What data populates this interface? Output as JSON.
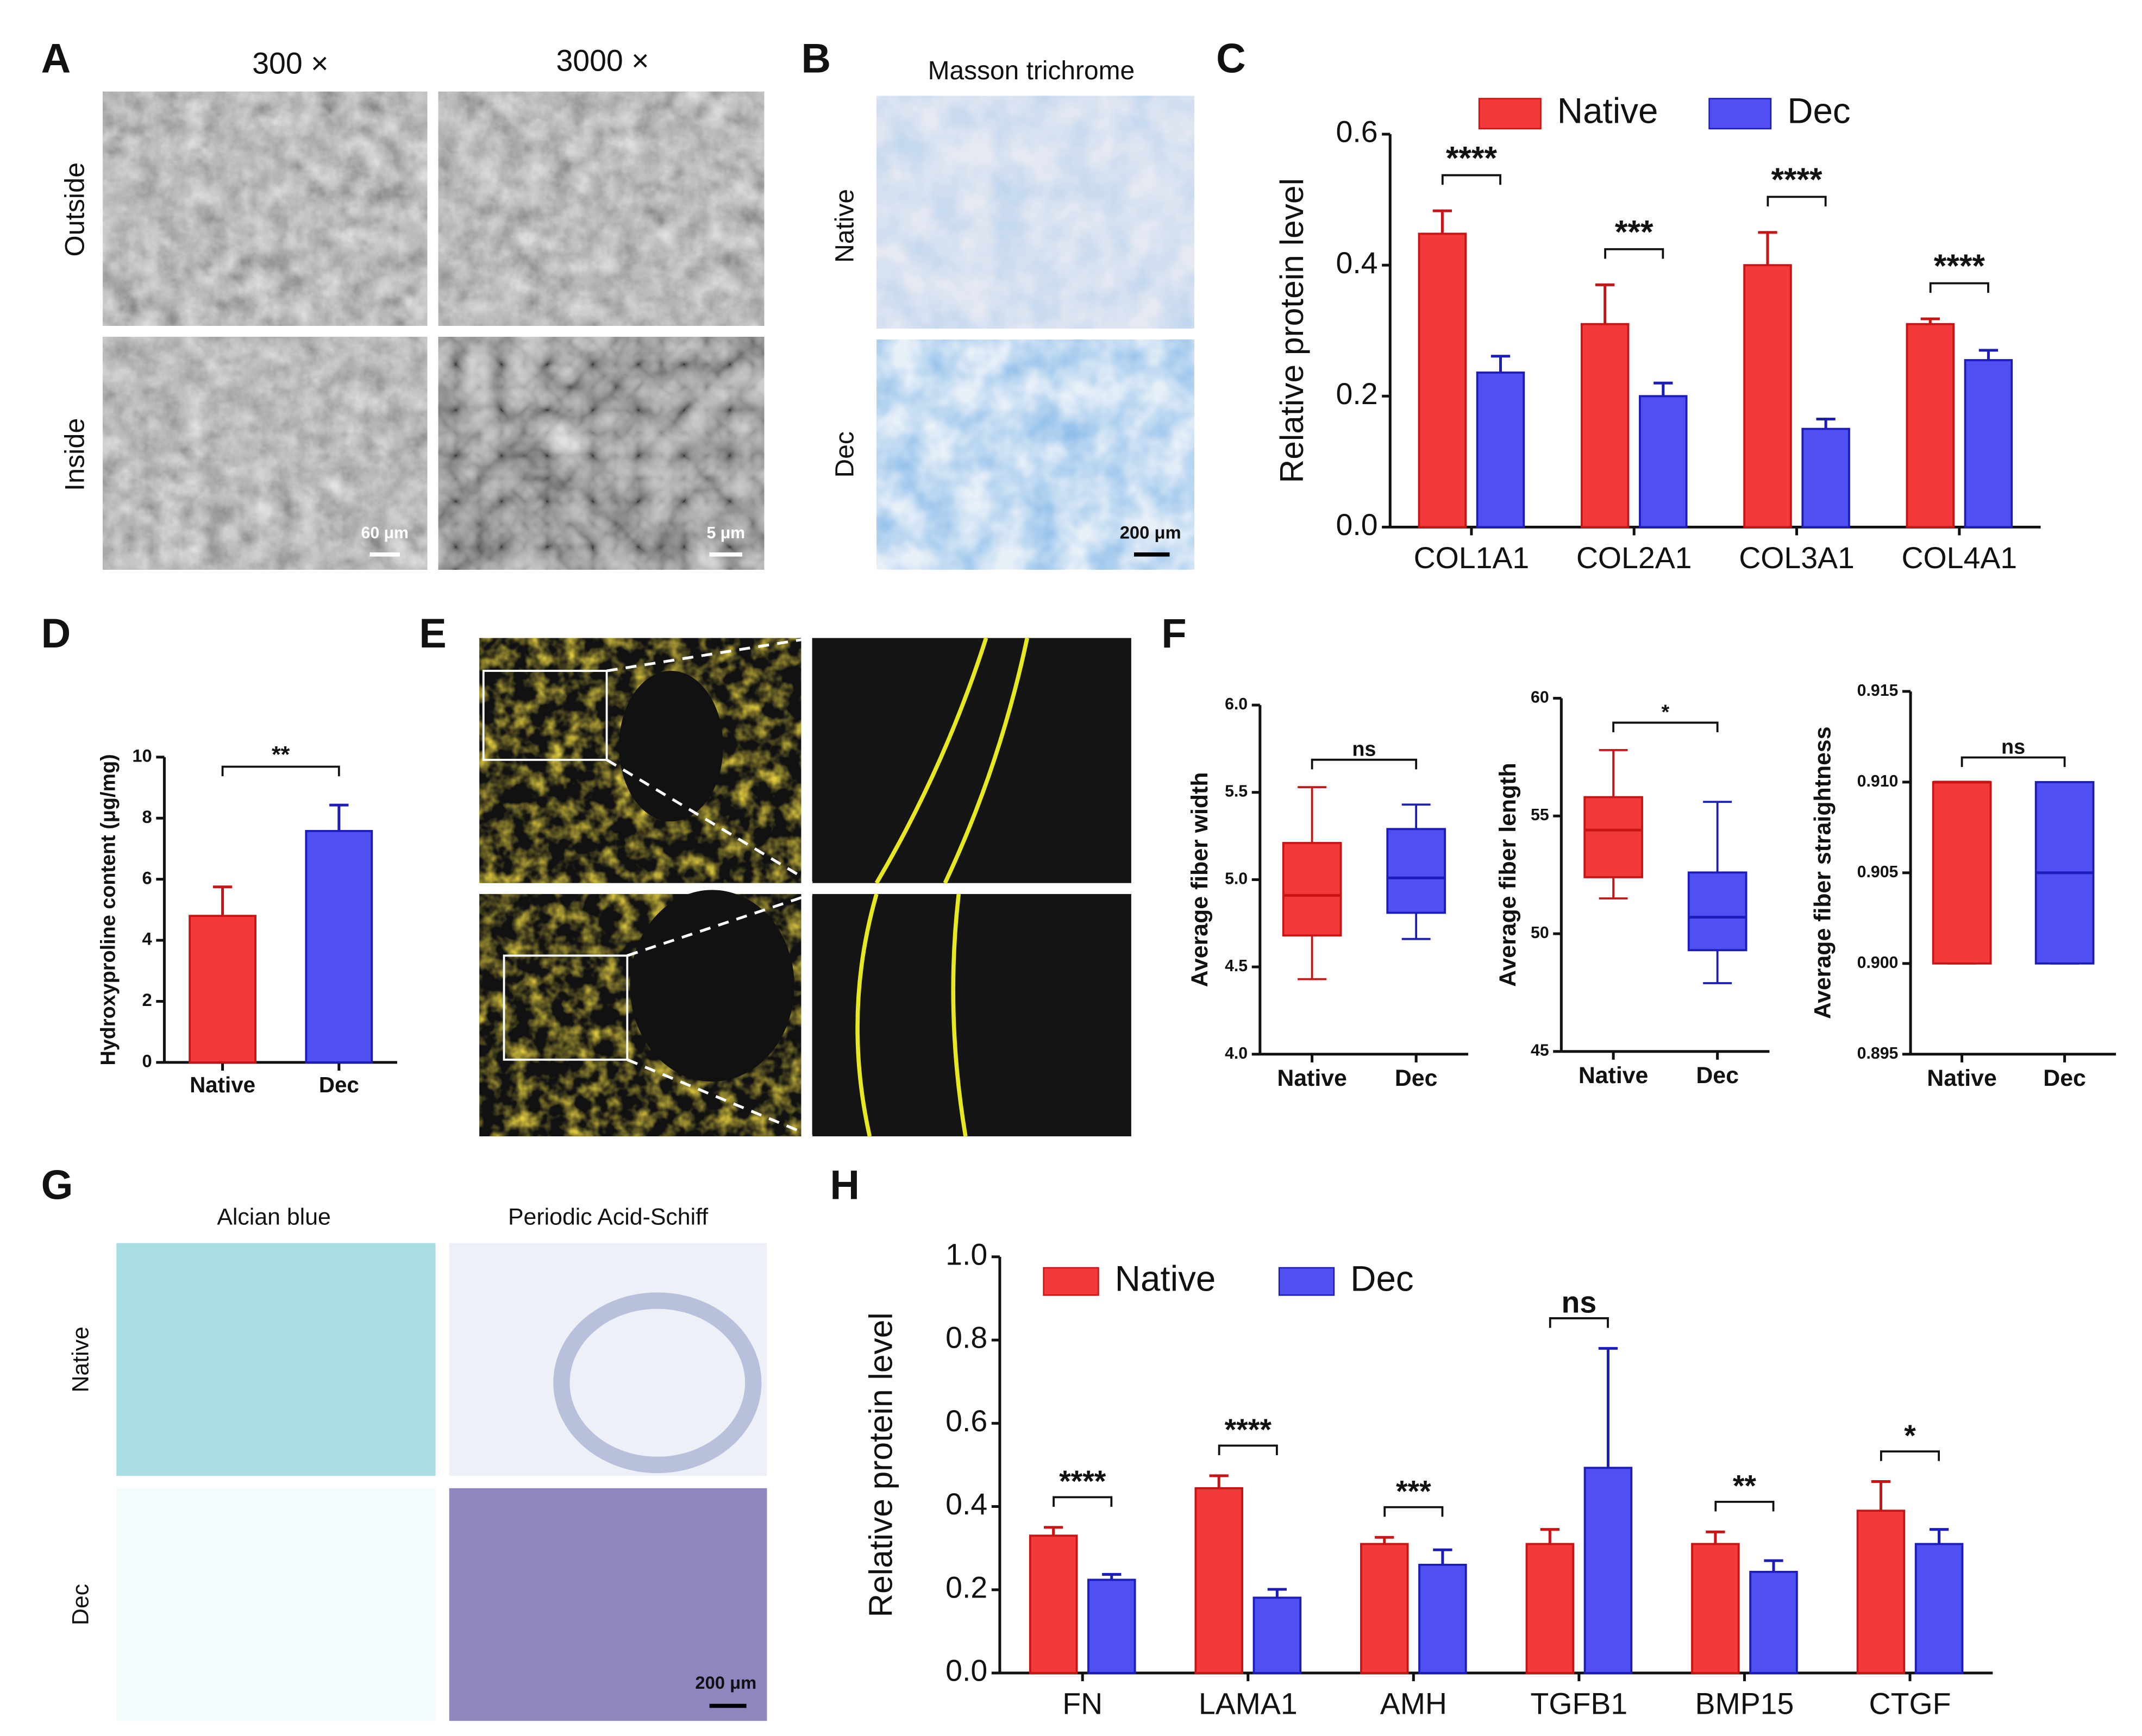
{
  "panel_labels": [
    "A",
    "B",
    "C",
    "D",
    "E",
    "F",
    "G",
    "H"
  ],
  "panel_A": {
    "columns": [
      "300 ×",
      "3000 ×"
    ],
    "rows": [
      "Outside",
      "Inside"
    ],
    "scale_bars": [
      "60 μm",
      "5 μm"
    ]
  },
  "panel_B": {
    "title": "Masson trichrome",
    "rows": [
      "Native",
      "Dec"
    ],
    "scale_bar": "200 μm"
  },
  "panel_G": {
    "columns": [
      "Alcian blue",
      "Periodic Acid-Schiff"
    ],
    "rows": [
      "Native",
      "Dec"
    ],
    "scale_bar": "200 μm"
  },
  "chart_data": [
    {
      "type": "bar",
      "ylabel": "Relative protein level",
      "legend": "top",
      "categories": [
        "COL1A1",
        "COL2A1",
        "COL3A1",
        "COL4A1"
      ],
      "series": [
        {
          "name": "Native",
          "color": "#f23a3a",
          "edge": "#c81414",
          "values": [
            0.448,
            0.31,
            0.4,
            0.31
          ],
          "errors": [
            0.035,
            0.06,
            0.05,
            0.008
          ]
        },
        {
          "name": "Dec",
          "color": "#4f4ff2",
          "edge": "#1c1cb8",
          "values": [
            0.236,
            0.2,
            0.15,
            0.255
          ],
          "errors": [
            0.025,
            0.02,
            0.015,
            0.015
          ]
        }
      ],
      "annotations": [
        "****",
        "***",
        "****",
        "****"
      ],
      "ylim": [
        0,
        0.6
      ],
      "yticks": [
        {
          "value": 0,
          "label": "0.0"
        },
        0.2,
        0.4,
        0.6
      ]
    },
    {
      "type": "bar",
      "ylabel": "Hydroxyproline content (μg/mg)",
      "categories": [
        "Native",
        "Dec"
      ],
      "values": [
        4.8,
        7.58
      ],
      "errors": [
        0.95,
        0.85
      ],
      "colors": [
        "#f23a3a",
        "#4f4ff2"
      ],
      "edges": [
        "#c81414",
        "#1c1cb8"
      ],
      "annotations": [
        "**"
      ],
      "ylim": [
        0,
        10
      ],
      "yticks": [
        0,
        2,
        4,
        6,
        8,
        10
      ]
    },
    {
      "type": "box",
      "ylabel": "Average fiber width",
      "categories": [
        "Native",
        "Dec"
      ],
      "boxes": [
        {
          "min": 4.43,
          "q1": 4.68,
          "median": 4.91,
          "q3": 5.21,
          "max": 5.53
        },
        {
          "min": 4.66,
          "q1": 4.81,
          "median": 5.01,
          "q3": 5.29,
          "max": 5.43
        }
      ],
      "colors": [
        "#f23a3a",
        "#4f4ff2"
      ],
      "edges": [
        "#c81414",
        "#1c1cb8"
      ],
      "annotations": [
        "ns"
      ],
      "ylim": [
        4,
        6
      ],
      "yticks": [
        {
          "value": 4,
          "label": "4.0"
        },
        4.5,
        {
          "value": 5,
          "label": "5.0"
        },
        5.5,
        {
          "value": 6,
          "label": "6.0"
        }
      ]
    },
    {
      "type": "box",
      "ylabel": "Average fiber length",
      "categories": [
        "Native",
        "Dec"
      ],
      "boxes": [
        {
          "min": 51.5,
          "q1": 52.4,
          "median": 54.4,
          "q3": 55.8,
          "max": 57.8
        },
        {
          "min": 47.9,
          "q1": 49.3,
          "median": 50.7,
          "q3": 52.6,
          "max": 55.6
        }
      ],
      "colors": [
        "#f23a3a",
        "#4f4ff2"
      ],
      "edges": [
        "#c81414",
        "#1c1cb8"
      ],
      "annotations": [
        "*"
      ],
      "ylim": [
        45,
        60
      ],
      "yticks": [
        45,
        50,
        55,
        60
      ]
    },
    {
      "type": "box",
      "ylabel": "Average fiber straightness",
      "categories": [
        "Native",
        "Dec"
      ],
      "boxes": [
        {
          "min": 0.9,
          "q1": 0.9,
          "median": 0.91,
          "q3": 0.91,
          "max": 0.91
        },
        {
          "min": 0.9,
          "q1": 0.9,
          "median": 0.905,
          "q3": 0.91,
          "max": 0.91
        }
      ],
      "colors": [
        "#f23a3a",
        "#4f4ff2"
      ],
      "edges": [
        "#c81414",
        "#1c1cb8"
      ],
      "annotations": [
        "ns"
      ],
      "ylim": [
        0.895,
        0.915
      ],
      "yticks": [
        0.895,
        {
          "value": 0.9,
          "label": "0.900"
        },
        0.905,
        {
          "value": 0.91,
          "label": "0.910"
        },
        0.915
      ]
    },
    {
      "type": "bar",
      "ylabel": "Relative protein level",
      "legend": "upper left",
      "categories": [
        "FN",
        "LAMA1",
        "AMH",
        "TGFB1",
        "BMP15",
        "CTGF"
      ],
      "series": [
        {
          "name": "Native",
          "color": "#f23a3a",
          "edge": "#c81414",
          "values": [
            0.33,
            0.444,
            0.31,
            0.31,
            0.31,
            0.39
          ],
          "errors": [
            0.02,
            0.03,
            0.016,
            0.035,
            0.029,
            0.07
          ]
        },
        {
          "name": "Dec",
          "color": "#4f4ff2",
          "edge": "#1c1cb8",
          "values": [
            0.224,
            0.181,
            0.26,
            0.493,
            0.243,
            0.31
          ],
          "errors": [
            0.013,
            0.02,
            0.036,
            0.287,
            0.027,
            0.035
          ]
        }
      ],
      "annotations": [
        "****",
        "****",
        "***",
        "ns",
        "**",
        "*"
      ],
      "ylim": [
        0,
        1
      ],
      "yticks": [
        {
          "value": 0,
          "label": "0.0"
        },
        0.2,
        0.4,
        0.6,
        0.8,
        {
          "value": 1,
          "label": "1.0"
        }
      ]
    }
  ]
}
